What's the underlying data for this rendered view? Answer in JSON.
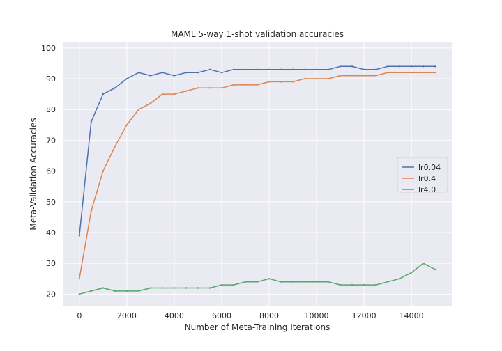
{
  "chart_data": {
    "type": "line",
    "title": "MAML 5-way 1-shot validation accuracies",
    "xlabel": "Number of Meta-Training Iterations",
    "ylabel": "Meta-Validation Accuracies",
    "xlim": [
      -700,
      15700
    ],
    "ylim": [
      16,
      102
    ],
    "xticks": [
      0,
      2000,
      4000,
      6000,
      8000,
      10000,
      12000,
      14000
    ],
    "yticks": [
      20,
      30,
      40,
      50,
      60,
      70,
      80,
      90,
      100
    ],
    "grid": true,
    "legend_position": "center-right",
    "background_color": "#eaeaf2",
    "grid_color": "#ffffff",
    "x": [
      0,
      500,
      1000,
      1500,
      2000,
      2500,
      3000,
      3500,
      4000,
      4500,
      5000,
      5500,
      6000,
      6500,
      7000,
      7500,
      8000,
      8500,
      9000,
      9500,
      10000,
      10500,
      11000,
      11500,
      12000,
      12500,
      13000,
      13500,
      14000,
      14500,
      15000
    ],
    "series": [
      {
        "name": "lr0.04",
        "color": "#4c72b0",
        "values": [
          39,
          76,
          85,
          87,
          90,
          92,
          91,
          92,
          91,
          92,
          92,
          93,
          92,
          93,
          93,
          93,
          93,
          93,
          93,
          93,
          93,
          93,
          94,
          94,
          93,
          93,
          94,
          94,
          94,
          94,
          94
        ]
      },
      {
        "name": "lr0.4",
        "color": "#dd8452",
        "values": [
          25,
          47,
          60,
          68,
          75,
          80,
          82,
          85,
          85,
          86,
          87,
          87,
          87,
          88,
          88,
          88,
          89,
          89,
          89,
          90,
          90,
          90,
          91,
          91,
          91,
          91,
          92,
          92,
          92,
          92,
          92
        ]
      },
      {
        "name": "lr4.0",
        "color": "#55a868",
        "values": [
          20,
          21,
          22,
          21,
          21,
          21,
          22,
          22,
          22,
          22,
          22,
          22,
          23,
          23,
          24,
          24,
          25,
          24,
          24,
          24,
          24,
          24,
          23,
          23,
          23,
          23,
          24,
          25,
          27,
          30,
          28
        ]
      }
    ]
  }
}
